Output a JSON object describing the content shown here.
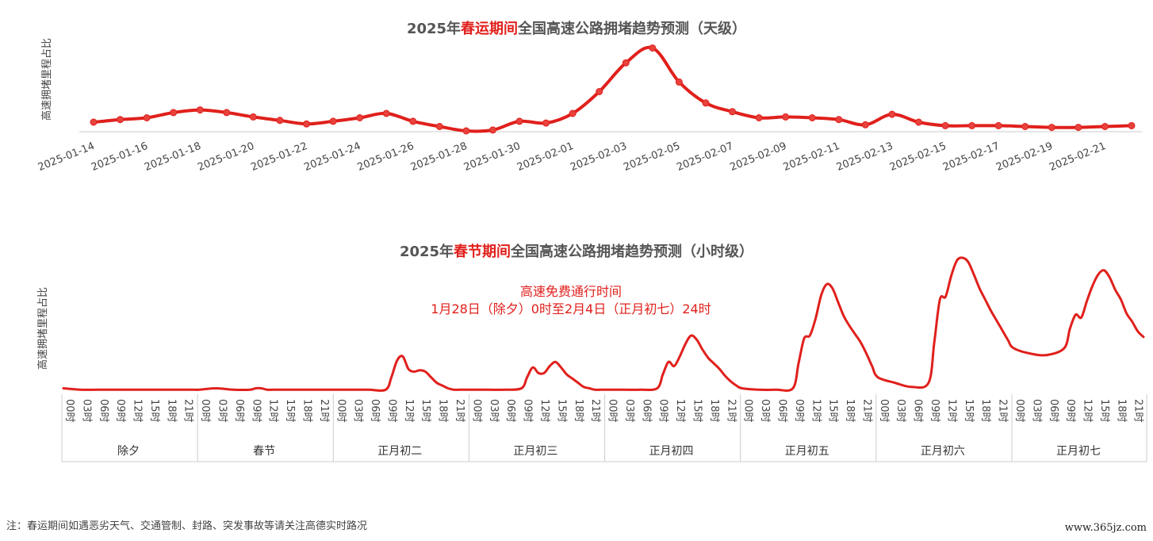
{
  "titles": {
    "top_pre": "2025年",
    "top_hl": "春运期间",
    "top_post": "全国高速公路拥堵趋势预测（天级）",
    "bottom_pre": "2025年",
    "bottom_hl": "春节期间",
    "bottom_post": "全国高速公路拥堵趋势预测（小时级）"
  },
  "annotation": {
    "line1": "高速免费通行时间",
    "line2": "1月28日（除夕）0时至2月4日（正月初七）24时"
  },
  "footnote": "注：春运期间如遇恶劣天气、交通管制、封路、突发事故等请关注高德实时路况",
  "watermark": "www.365jz.com",
  "colors": {
    "line": "#e0201c",
    "axis": "#cccccc",
    "text": "#444444"
  },
  "chart_data": [
    {
      "type": "line",
      "title": "2025年春运期间全国高速公路拥堵趋势预测（天级）",
      "ylabel": "高速拥堵里程占比",
      "x": [
        "2025-01-14",
        "2025-01-15",
        "2025-01-16",
        "2025-01-17",
        "2025-01-18",
        "2025-01-19",
        "2025-01-20",
        "2025-01-21",
        "2025-01-22",
        "2025-01-23",
        "2025-01-24",
        "2025-01-25",
        "2025-01-26",
        "2025-01-27",
        "2025-01-28",
        "2025-01-29",
        "2025-01-30",
        "2025-01-31",
        "2025-02-01",
        "2025-02-02",
        "2025-02-03",
        "2025-02-04",
        "2025-02-05",
        "2025-02-06",
        "2025-02-07",
        "2025-02-08",
        "2025-02-09",
        "2025-02-10",
        "2025-02-11",
        "2025-02-12",
        "2025-02-13",
        "2025-02-14",
        "2025-02-15",
        "2025-02-16",
        "2025-02-17",
        "2025-02-18",
        "2025-02-19",
        "2025-02-20",
        "2025-02-21",
        "2025-02-22"
      ],
      "tick_labels": [
        "2025-01-14",
        "2025-01-16",
        "2025-01-18",
        "2025-01-20",
        "2025-01-22",
        "2025-01-24",
        "2025-01-26",
        "2025-01-28",
        "2025-01-30",
        "2025-02-01",
        "2025-02-03",
        "2025-02-05",
        "2025-02-07",
        "2025-02-09",
        "2025-02-11",
        "2025-02-13",
        "2025-02-15",
        "2025-02-17",
        "2025-02-19",
        "2025-02-21"
      ],
      "values": [
        0.1,
        0.13,
        0.15,
        0.21,
        0.24,
        0.21,
        0.16,
        0.12,
        0.08,
        0.11,
        0.15,
        0.2,
        0.11,
        0.05,
        0.0,
        0.01,
        0.11,
        0.09,
        0.2,
        0.45,
        0.78,
        0.95,
        0.56,
        0.32,
        0.22,
        0.15,
        0.16,
        0.15,
        0.13,
        0.07,
        0.19,
        0.1,
        0.06,
        0.06,
        0.06,
        0.05,
        0.04,
        0.04,
        0.05,
        0.06
      ],
      "ylim": [
        0,
        1
      ],
      "grid": false
    },
    {
      "type": "line",
      "title": "2025年春节期间全国高速公路拥堵趋势预测（小时级）",
      "ylabel": "高速拥堵里程占比",
      "hour_labels": [
        "00时",
        "03时",
        "06时",
        "09时",
        "12时",
        "15时",
        "18时",
        "21时"
      ],
      "days": [
        "除夕",
        "春节",
        "正月初二",
        "正月初三",
        "正月初四",
        "正月初五",
        "正月初六",
        "正月初七"
      ],
      "x_hours": [
        0,
        3,
        6,
        9,
        10,
        11,
        12,
        13,
        14,
        15,
        16,
        17,
        18,
        19,
        20,
        21,
        22,
        23,
        24,
        27,
        30,
        33,
        34,
        35,
        36,
        37,
        38,
        39,
        40,
        41,
        42,
        43,
        44,
        45,
        46,
        47,
        48,
        51,
        54,
        57,
        58,
        59,
        60,
        61,
        62,
        63,
        64,
        65,
        66,
        67,
        68,
        69,
        70,
        71,
        72,
        75,
        78,
        81,
        82,
        83,
        84,
        85,
        86,
        87,
        88,
        89,
        90,
        91,
        92,
        93,
        94,
        95,
        96,
        99,
        102,
        105,
        106,
        107,
        108,
        109,
        110,
        111,
        112,
        113,
        114,
        115,
        116,
        117,
        118,
        119,
        120,
        123,
        126,
        129,
        130,
        131,
        132,
        133,
        134,
        135,
        136,
        137,
        138,
        139,
        140,
        141,
        142,
        143,
        144,
        147,
        150,
        153,
        154,
        155,
        156,
        157,
        158,
        159,
        160,
        161,
        162,
        163,
        164,
        165,
        166,
        167,
        168,
        171,
        174,
        177,
        178,
        179,
        180,
        181,
        182,
        183,
        184,
        185,
        186,
        187,
        188,
        189,
        190,
        191
      ],
      "values": [
        0.02,
        0.01,
        0.01,
        0.01,
        0.01,
        0.01,
        0.01,
        0.01,
        0.01,
        0.01,
        0.01,
        0.01,
        0.01,
        0.01,
        0.01,
        0.01,
        0.01,
        0.01,
        0.01,
        0.02,
        0.01,
        0.01,
        0.02,
        0.02,
        0.01,
        0.01,
        0.01,
        0.01,
        0.01,
        0.01,
        0.01,
        0.01,
        0.01,
        0.01,
        0.01,
        0.01,
        0.01,
        0.01,
        0.01,
        0.01,
        0.1,
        0.22,
        0.25,
        0.16,
        0.14,
        0.15,
        0.14,
        0.1,
        0.06,
        0.04,
        0.02,
        0.01,
        0.01,
        0.01,
        0.01,
        0.01,
        0.01,
        0.02,
        0.1,
        0.17,
        0.13,
        0.13,
        0.18,
        0.21,
        0.17,
        0.12,
        0.09,
        0.06,
        0.03,
        0.02,
        0.01,
        0.01,
        0.01,
        0.01,
        0.01,
        0.02,
        0.12,
        0.21,
        0.18,
        0.25,
        0.34,
        0.4,
        0.37,
        0.3,
        0.24,
        0.2,
        0.16,
        0.11,
        0.07,
        0.04,
        0.02,
        0.01,
        0.01,
        0.02,
        0.2,
        0.38,
        0.4,
        0.52,
        0.69,
        0.77,
        0.74,
        0.64,
        0.54,
        0.47,
        0.41,
        0.35,
        0.27,
        0.18,
        0.1,
        0.06,
        0.03,
        0.06,
        0.35,
        0.66,
        0.68,
        0.83,
        0.94,
        0.96,
        0.93,
        0.84,
        0.74,
        0.66,
        0.58,
        0.51,
        0.44,
        0.37,
        0.31,
        0.27,
        0.26,
        0.31,
        0.45,
        0.55,
        0.53,
        0.65,
        0.76,
        0.84,
        0.87,
        0.82,
        0.73,
        0.66,
        0.56,
        0.5,
        0.43,
        0.39
      ],
      "ylim": [
        0,
        1
      ],
      "grid": false
    }
  ]
}
